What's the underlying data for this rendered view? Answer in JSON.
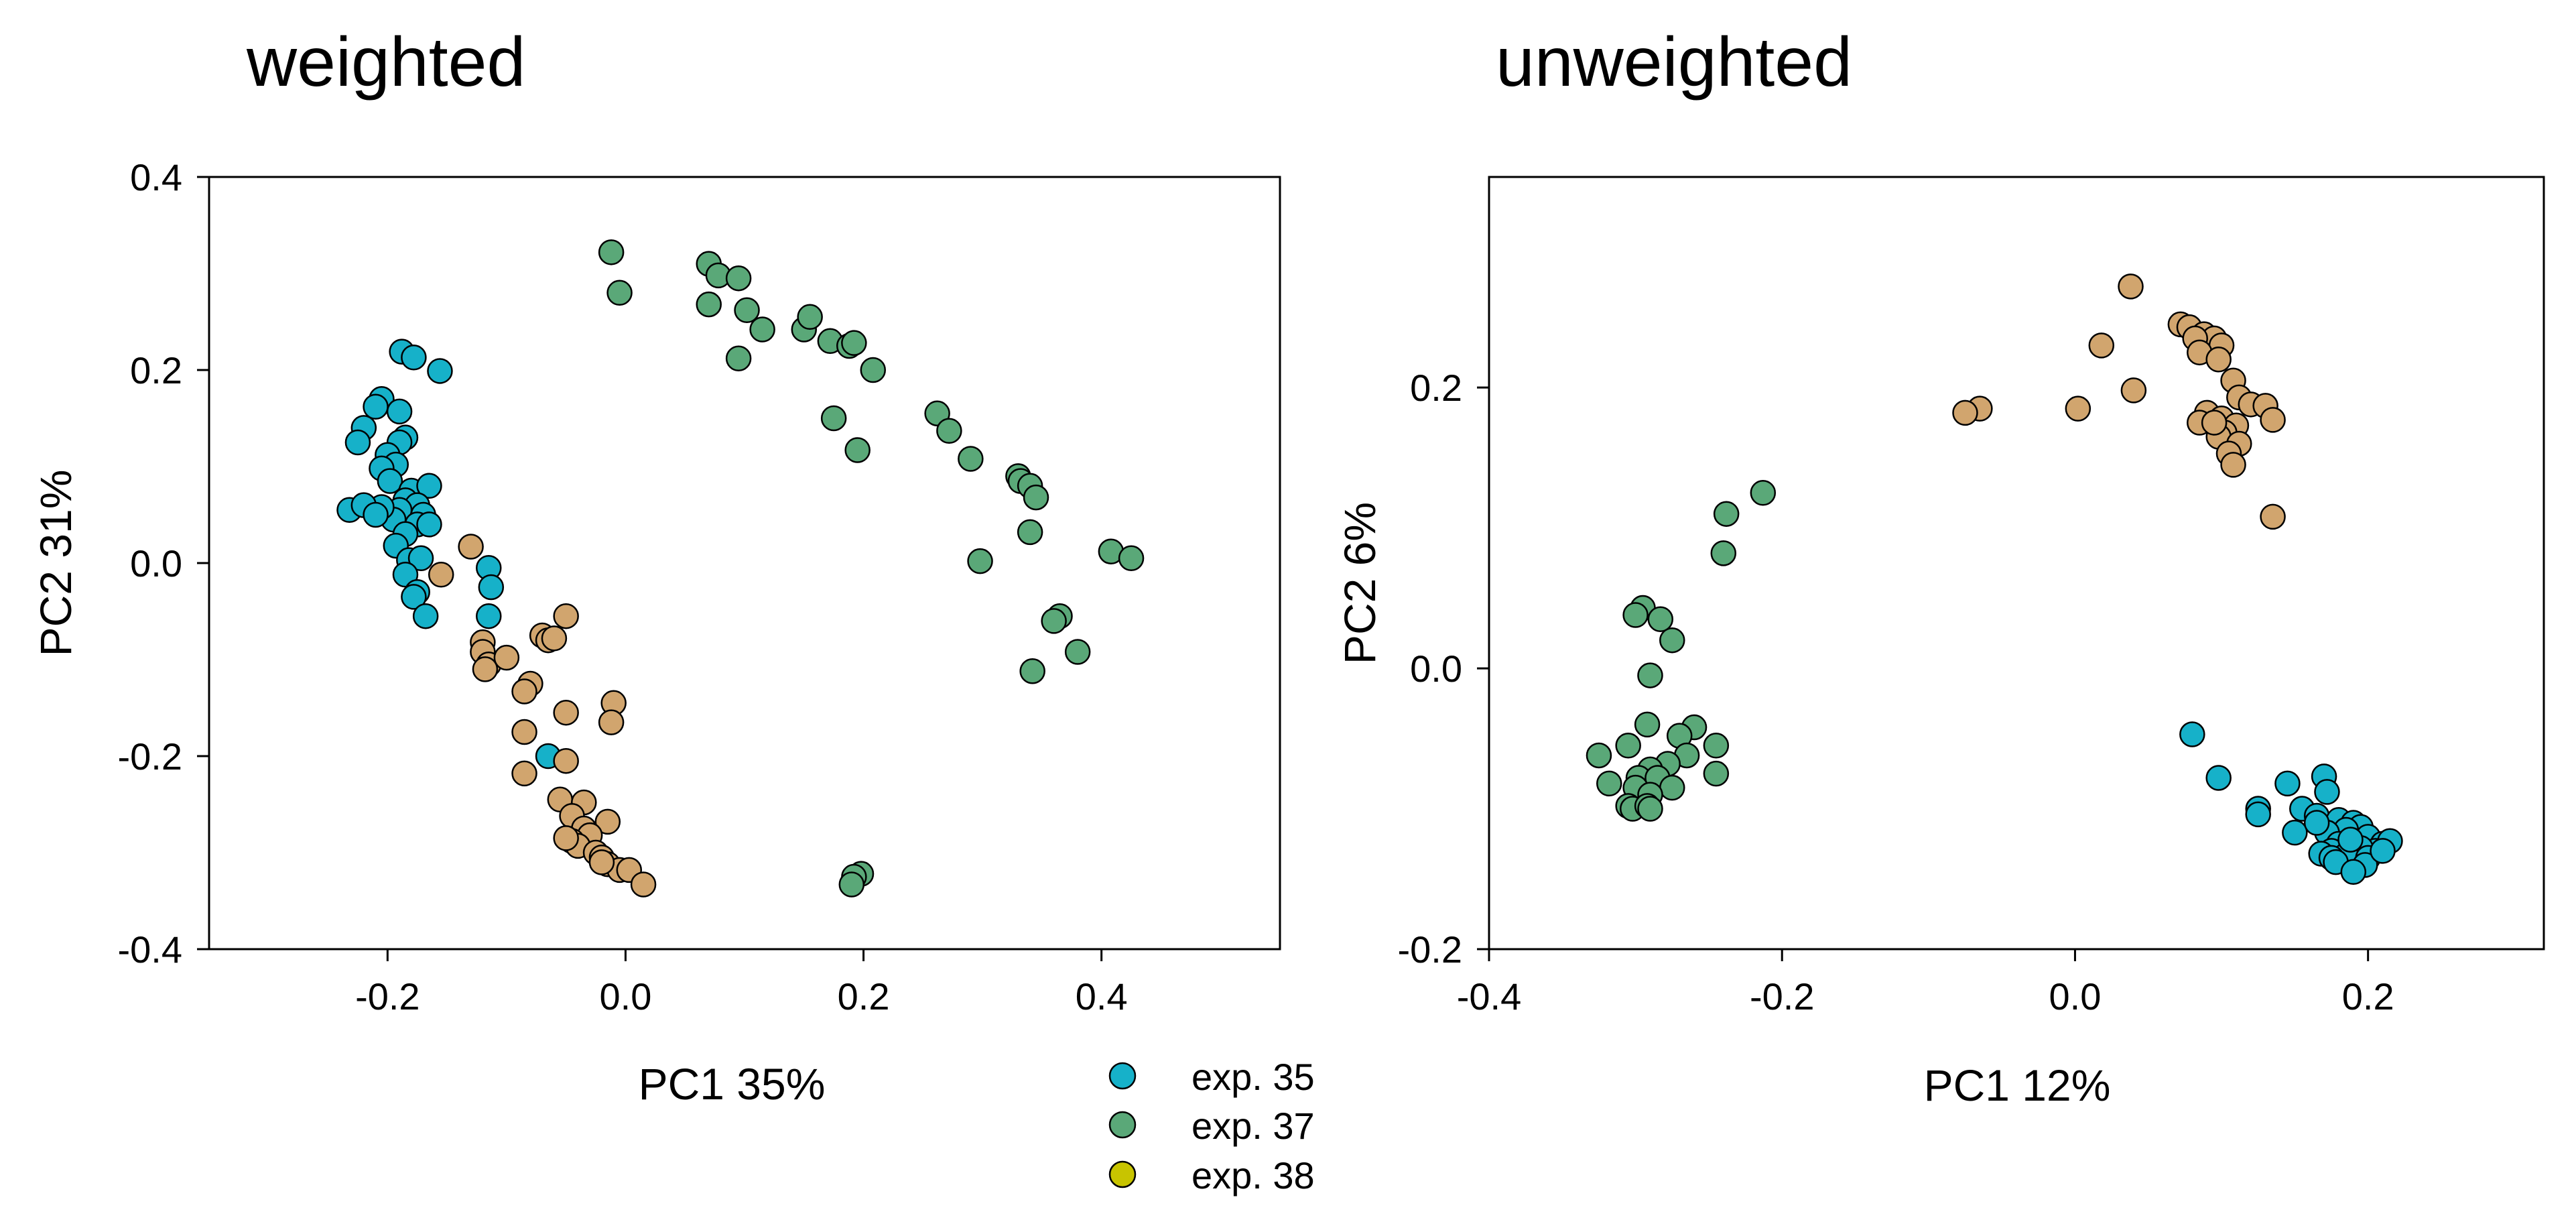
{
  "figure": {
    "legend": [
      {
        "label": "exp. 35",
        "color": "#16b1c9"
      },
      {
        "label": "exp. 37",
        "color": "#5aa878"
      },
      {
        "label": "exp. 38",
        "color": "#c8c400"
      }
    ]
  },
  "chart_data": [
    {
      "type": "scatter",
      "title": "weighted",
      "xlabel": "PC1 35%",
      "ylabel": "PC2  31%",
      "xlim": [
        -0.35,
        0.55
      ],
      "ylim": [
        -0.4,
        0.4
      ],
      "xticks": [
        -0.2,
        0.0,
        0.2,
        0.4
      ],
      "yticks": [
        -0.4,
        -0.2,
        0.0,
        0.2,
        0.4
      ],
      "xtick_labels": [
        "-0.2",
        "0.0",
        "0.2",
        "0.4"
      ],
      "ytick_labels": [
        "-0.4",
        "-0.2",
        "0.0",
        "0.2",
        "0.4"
      ],
      "series": [
        {
          "name": "exp. 35",
          "color": "#16b1c9",
          "points": [
            [
              -0.188,
              0.219
            ],
            [
              -0.178,
              0.213
            ],
            [
              -0.156,
              0.199
            ],
            [
              -0.205,
              0.17
            ],
            [
              -0.21,
              0.162
            ],
            [
              -0.19,
              0.157
            ],
            [
              -0.22,
              0.14
            ],
            [
              -0.225,
              0.125
            ],
            [
              -0.185,
              0.13
            ],
            [
              -0.19,
              0.125
            ],
            [
              -0.2,
              0.112
            ],
            [
              -0.193,
              0.102
            ],
            [
              -0.205,
              0.098
            ],
            [
              -0.198,
              0.085
            ],
            [
              -0.18,
              0.075
            ],
            [
              -0.165,
              0.08
            ],
            [
              -0.185,
              0.065
            ],
            [
              -0.175,
              0.06
            ],
            [
              -0.17,
              0.05
            ],
            [
              -0.19,
              0.055
            ],
            [
              -0.195,
              0.045
            ],
            [
              -0.205,
              0.058
            ],
            [
              -0.232,
              0.055
            ],
            [
              -0.22,
              0.06
            ],
            [
              -0.21,
              0.05
            ],
            [
              -0.175,
              0.04
            ],
            [
              -0.165,
              0.04
            ],
            [
              -0.185,
              0.03
            ],
            [
              -0.193,
              0.018
            ],
            [
              -0.182,
              0.003
            ],
            [
              -0.172,
              0.005
            ],
            [
              -0.185,
              -0.012
            ],
            [
              -0.175,
              -0.03
            ],
            [
              -0.178,
              -0.035
            ],
            [
              -0.168,
              -0.055
            ],
            [
              -0.115,
              -0.005
            ],
            [
              -0.113,
              -0.025
            ],
            [
              -0.115,
              -0.055
            ],
            [
              -0.065,
              -0.2
            ]
          ]
        },
        {
          "name": "exp. 37",
          "color": "#5aa878",
          "points": [
            [
              -0.012,
              0.322
            ],
            [
              -0.005,
              0.28
            ],
            [
              0.07,
              0.31
            ],
            [
              0.078,
              0.298
            ],
            [
              0.095,
              0.295
            ],
            [
              0.07,
              0.268
            ],
            [
              0.102,
              0.262
            ],
            [
              0.115,
              0.242
            ],
            [
              0.15,
              0.242
            ],
            [
              0.155,
              0.255
            ],
            [
              0.172,
              0.23
            ],
            [
              0.188,
              0.225
            ],
            [
              0.192,
              0.228
            ],
            [
              0.095,
              0.212
            ],
            [
              0.208,
              0.2
            ],
            [
              0.175,
              0.15
            ],
            [
              0.195,
              0.117
            ],
            [
              0.262,
              0.155
            ],
            [
              0.272,
              0.137
            ],
            [
              0.29,
              0.108
            ],
            [
              0.33,
              0.09
            ],
            [
              0.332,
              0.085
            ],
            [
              0.34,
              0.08
            ],
            [
              0.345,
              0.068
            ],
            [
              0.34,
              0.032
            ],
            [
              0.298,
              0.002
            ],
            [
              0.408,
              0.012
            ],
            [
              0.425,
              0.005
            ],
            [
              0.365,
              -0.055
            ],
            [
              0.36,
              -0.06
            ],
            [
              0.38,
              -0.092
            ],
            [
              0.342,
              -0.112
            ],
            [
              0.198,
              -0.322
            ],
            [
              0.192,
              -0.325
            ],
            [
              0.19,
              -0.333
            ]
          ]
        },
        {
          "name": "exp. 38",
          "color": "#d1a56e",
          "points": [
            [
              -0.13,
              0.017
            ],
            [
              -0.155,
              -0.012
            ],
            [
              -0.12,
              -0.082
            ],
            [
              -0.12,
              -0.092
            ],
            [
              -0.115,
              -0.105
            ],
            [
              -0.118,
              -0.11
            ],
            [
              -0.1,
              -0.098
            ],
            [
              -0.07,
              -0.075
            ],
            [
              -0.065,
              -0.08
            ],
            [
              -0.06,
              -0.078
            ],
            [
              -0.05,
              -0.055
            ],
            [
              -0.08,
              -0.125
            ],
            [
              -0.085,
              -0.133
            ],
            [
              -0.05,
              -0.155
            ],
            [
              -0.01,
              -0.145
            ],
            [
              -0.012,
              -0.165
            ],
            [
              -0.085,
              -0.175
            ],
            [
              -0.05,
              -0.205
            ],
            [
              -0.085,
              -0.218
            ],
            [
              -0.055,
              -0.245
            ],
            [
              -0.035,
              -0.248
            ],
            [
              -0.045,
              -0.262
            ],
            [
              -0.015,
              -0.268
            ],
            [
              -0.035,
              -0.275
            ],
            [
              -0.03,
              -0.282
            ],
            [
              -0.045,
              -0.288
            ],
            [
              -0.04,
              -0.293
            ],
            [
              -0.05,
              -0.285
            ],
            [
              -0.025,
              -0.3
            ],
            [
              -0.02,
              -0.305
            ],
            [
              -0.015,
              -0.312
            ],
            [
              -0.005,
              -0.318
            ],
            [
              0.003,
              -0.318
            ],
            [
              0.015,
              -0.333
            ],
            [
              -0.02,
              -0.31
            ]
          ]
        }
      ]
    },
    {
      "type": "scatter",
      "title": "unweighted",
      "xlabel": "PC1  12%",
      "ylabel": "PC2  6%",
      "xlim": [
        -0.4,
        0.32
      ],
      "ylim": [
        -0.2,
        0.35
      ],
      "xticks": [
        -0.4,
        -0.2,
        0.0,
        0.2
      ],
      "yticks": [
        -0.2,
        0.0,
        0.2
      ],
      "xtick_labels": [
        "-0.4",
        "-0.2",
        "0.0",
        "0.2"
      ],
      "ytick_labels": [
        "-0.2",
        "0.0",
        "0.2"
      ],
      "series": [
        {
          "name": "exp. 35",
          "color": "#16b1c9",
          "points": [
            [
              0.08,
              -0.047
            ],
            [
              0.098,
              -0.078
            ],
            [
              0.17,
              -0.077
            ],
            [
              0.145,
              -0.082
            ],
            [
              0.172,
              -0.088
            ],
            [
              0.125,
              -0.1
            ],
            [
              0.125,
              -0.104
            ],
            [
              0.155,
              -0.1
            ],
            [
              0.165,
              -0.105
            ],
            [
              0.18,
              -0.108
            ],
            [
              0.19,
              -0.11
            ],
            [
              0.195,
              -0.113
            ],
            [
              0.185,
              -0.115
            ],
            [
              0.15,
              -0.117
            ],
            [
              0.172,
              -0.117
            ],
            [
              0.2,
              -0.12
            ],
            [
              0.21,
              -0.125
            ],
            [
              0.215,
              -0.123
            ],
            [
              0.18,
              -0.125
            ],
            [
              0.205,
              -0.13
            ],
            [
              0.195,
              -0.128
            ],
            [
              0.175,
              -0.13
            ],
            [
              0.168,
              -0.132
            ],
            [
              0.185,
              -0.133
            ],
            [
              0.2,
              -0.135
            ],
            [
              0.175,
              -0.135
            ],
            [
              0.178,
              -0.138
            ],
            [
              0.198,
              -0.14
            ],
            [
              0.19,
              -0.145
            ],
            [
              0.21,
              -0.13
            ],
            [
              0.188,
              -0.122
            ],
            [
              0.165,
              -0.11
            ]
          ]
        },
        {
          "name": "exp. 37",
          "color": "#5aa878",
          "points": [
            [
              -0.213,
              0.125
            ],
            [
              -0.238,
              0.11
            ],
            [
              -0.24,
              0.082
            ],
            [
              -0.295,
              0.043
            ],
            [
              -0.3,
              0.038
            ],
            [
              -0.283,
              0.035
            ],
            [
              -0.275,
              0.02
            ],
            [
              -0.29,
              -0.005
            ],
            [
              -0.292,
              -0.04
            ],
            [
              -0.26,
              -0.042
            ],
            [
              -0.27,
              -0.048
            ],
            [
              -0.245,
              -0.055
            ],
            [
              -0.305,
              -0.055
            ],
            [
              -0.325,
              -0.062
            ],
            [
              -0.265,
              -0.062
            ],
            [
              -0.278,
              -0.068
            ],
            [
              -0.29,
              -0.072
            ],
            [
              -0.298,
              -0.078
            ],
            [
              -0.285,
              -0.078
            ],
            [
              -0.245,
              -0.075
            ],
            [
              -0.318,
              -0.082
            ],
            [
              -0.3,
              -0.085
            ],
            [
              -0.275,
              -0.085
            ],
            [
              -0.29,
              -0.09
            ],
            [
              -0.305,
              -0.098
            ],
            [
              -0.302,
              -0.1
            ],
            [
              -0.292,
              -0.098
            ],
            [
              -0.29,
              -0.1
            ]
          ]
        },
        {
          "name": "exp. 38",
          "color": "#d1a56e",
          "points": [
            [
              0.038,
              0.272
            ],
            [
              0.072,
              0.245
            ],
            [
              0.078,
              0.243
            ],
            [
              0.088,
              0.238
            ],
            [
              0.095,
              0.235
            ],
            [
              0.082,
              0.235
            ],
            [
              0.1,
              0.23
            ],
            [
              0.018,
              0.23
            ],
            [
              0.085,
              0.225
            ],
            [
              0.098,
              0.22
            ],
            [
              0.108,
              0.205
            ],
            [
              0.04,
              0.198
            ],
            [
              0.112,
              0.193
            ],
            [
              0.12,
              0.188
            ],
            [
              0.13,
              0.187
            ],
            [
              0.002,
              0.185
            ],
            [
              -0.065,
              0.185
            ],
            [
              -0.075,
              0.182
            ],
            [
              0.09,
              0.182
            ],
            [
              0.1,
              0.178
            ],
            [
              0.135,
              0.177
            ],
            [
              0.085,
              0.175
            ],
            [
              0.11,
              0.173
            ],
            [
              0.102,
              0.168
            ],
            [
              0.098,
              0.165
            ],
            [
              0.112,
              0.16
            ],
            [
              0.105,
              0.153
            ],
            [
              0.108,
              0.145
            ],
            [
              0.135,
              0.108
            ],
            [
              0.095,
              0.175
            ]
          ]
        }
      ]
    }
  ]
}
